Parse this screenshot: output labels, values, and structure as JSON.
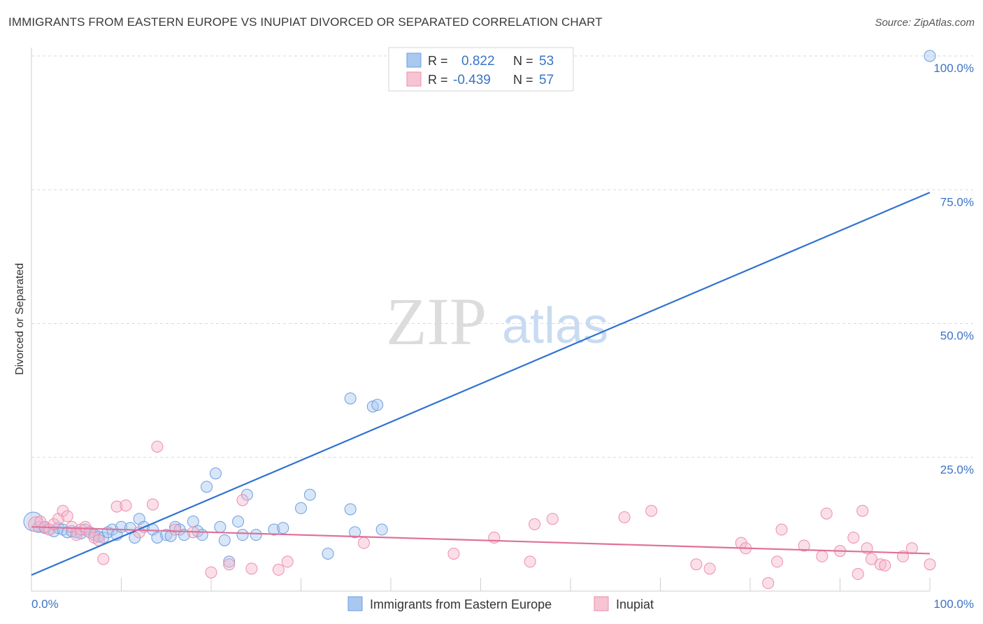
{
  "title": "IMMIGRANTS FROM EASTERN EUROPE VS INUPIAT DIVORCED OR SEPARATED CORRELATION CHART",
  "source": "Source: ZipAtlas.com",
  "watermark": {
    "zip": "ZIP",
    "atlas": "atlas"
  },
  "colors": {
    "blue_fill": "#a9c8f0",
    "blue_stroke": "#6c9fe0",
    "blue_line": "#2f72d0",
    "pink_fill": "#f6b8cb",
    "pink_stroke": "#ec8eab",
    "pink_line": "#e0709a",
    "grid": "#d8d8d8",
    "tick_text": "#3a74c6"
  },
  "legend": {
    "r_label": "R =",
    "n_label": "N =",
    "blue": {
      "r": "0.822",
      "n": "53"
    },
    "pink": {
      "r": "-0.439",
      "n": "57"
    }
  },
  "chart_data": {
    "type": "scatter",
    "title": "IMMIGRANTS FROM EASTERN EUROPE VS INUPIAT DIVORCED OR SEPARATED CORRELATION CHART",
    "xlabel": "",
    "ylabel": "Divorced or Separated",
    "xlim": [
      0,
      100
    ],
    "ylim": [
      0,
      100
    ],
    "x_tick_labels": [
      "0.0%",
      "100.0%"
    ],
    "y_ticks": [
      25,
      50,
      75,
      100
    ],
    "y_tick_labels": [
      "25.0%",
      "50.0%",
      "75.0%",
      "100.0%"
    ],
    "series": [
      {
        "name": "Immigrants from Eastern Europe",
        "color": "blue",
        "trend": {
          "x0": 0,
          "y0": 3.0,
          "x1": 100,
          "y1": 74.5
        },
        "points": [
          [
            0.2,
            13.0,
            3
          ],
          [
            0.8,
            12.0,
            1
          ],
          [
            1.5,
            11.8,
            1
          ],
          [
            2.0,
            11.5,
            1
          ],
          [
            2.5,
            11.2,
            1
          ],
          [
            3.0,
            11.8,
            1
          ],
          [
            3.5,
            11.5,
            1
          ],
          [
            4.0,
            11.0,
            1
          ],
          [
            4.5,
            11.2,
            1
          ],
          [
            5.0,
            11.0,
            1
          ],
          [
            5.5,
            10.8,
            1
          ],
          [
            6.0,
            11.5,
            1
          ],
          [
            6.5,
            11.0,
            1
          ],
          [
            7.0,
            10.5,
            1
          ],
          [
            7.5,
            10.2,
            1
          ],
          [
            8.0,
            10.0,
            1
          ],
          [
            8.5,
            11.0,
            1
          ],
          [
            9.0,
            11.5,
            1
          ],
          [
            9.5,
            10.5,
            1
          ],
          [
            10.0,
            12.0,
            1
          ],
          [
            11.0,
            11.8,
            1
          ],
          [
            11.5,
            10.0,
            1
          ],
          [
            12.0,
            13.5,
            1
          ],
          [
            12.5,
            12.0,
            1
          ],
          [
            13.5,
            11.5,
            1
          ],
          [
            14.0,
            10.0,
            1
          ],
          [
            15.0,
            10.5,
            1
          ],
          [
            15.5,
            10.3,
            1
          ],
          [
            16.0,
            12.0,
            1
          ],
          [
            16.5,
            11.5,
            1
          ],
          [
            17.0,
            10.5,
            1
          ],
          [
            18.0,
            13.0,
            1
          ],
          [
            18.5,
            11.2,
            1
          ],
          [
            19.0,
            10.5,
            1
          ],
          [
            19.5,
            19.5,
            1
          ],
          [
            20.5,
            22.0,
            1
          ],
          [
            21.0,
            12.0,
            1
          ],
          [
            21.5,
            9.5,
            1
          ],
          [
            22.0,
            5.5,
            1
          ],
          [
            23.0,
            13.0,
            1
          ],
          [
            23.5,
            10.5,
            1
          ],
          [
            24.0,
            18.0,
            1
          ],
          [
            25.0,
            10.5,
            1
          ],
          [
            27.0,
            11.5,
            1
          ],
          [
            28.0,
            11.8,
            1
          ],
          [
            30.0,
            15.5,
            1
          ],
          [
            31.0,
            18.0,
            1
          ],
          [
            33.0,
            7.0,
            1
          ],
          [
            35.5,
            36.0,
            1
          ],
          [
            35.5,
            15.3,
            1
          ],
          [
            36.0,
            11.0,
            1
          ],
          [
            38.0,
            34.5,
            1
          ],
          [
            38.5,
            34.8,
            1
          ],
          [
            39.0,
            11.5,
            1
          ],
          [
            100.0,
            100.0,
            1
          ]
        ]
      },
      {
        "name": "Inupiat",
        "color": "pink",
        "trend": {
          "x0": 0,
          "y0": 12.0,
          "x1": 100,
          "y1": 7.0
        },
        "points": [
          [
            0.5,
            12.5,
            2
          ],
          [
            1.0,
            13.0,
            1
          ],
          [
            1.5,
            12.0,
            1
          ],
          [
            2.0,
            11.5,
            1
          ],
          [
            2.5,
            12.5,
            1
          ],
          [
            3.0,
            13.5,
            1
          ],
          [
            3.5,
            15.0,
            1
          ],
          [
            4.0,
            14.0,
            1
          ],
          [
            4.5,
            12.0,
            1
          ],
          [
            5.0,
            10.5,
            1
          ],
          [
            5.5,
            11.5,
            1
          ],
          [
            6.0,
            12.0,
            1
          ],
          [
            6.5,
            11.0,
            1
          ],
          [
            7.0,
            10.0,
            1
          ],
          [
            7.5,
            9.5,
            1
          ],
          [
            8.0,
            6.0,
            1
          ],
          [
            9.5,
            15.8,
            1
          ],
          [
            10.5,
            16.0,
            1
          ],
          [
            12.0,
            11.0,
            1
          ],
          [
            13.5,
            16.2,
            1
          ],
          [
            14.0,
            27.0,
            1
          ],
          [
            16.0,
            11.5,
            1
          ],
          [
            18.0,
            11.0,
            1
          ],
          [
            20.0,
            3.5,
            1
          ],
          [
            22.0,
            5.0,
            1
          ],
          [
            23.5,
            17.0,
            1
          ],
          [
            24.5,
            4.2,
            1
          ],
          [
            27.5,
            4.0,
            1
          ],
          [
            28.5,
            5.5,
            1
          ],
          [
            37.0,
            9.0,
            1
          ],
          [
            47.0,
            7.0,
            1
          ],
          [
            51.5,
            10.0,
            1
          ],
          [
            55.5,
            5.5,
            1
          ],
          [
            56.0,
            12.5,
            1
          ],
          [
            58.0,
            13.5,
            1
          ],
          [
            66.0,
            13.8,
            1
          ],
          [
            69.0,
            15.0,
            1
          ],
          [
            74.0,
            5.0,
            1
          ],
          [
            75.5,
            4.2,
            1
          ],
          [
            79.0,
            9.0,
            1
          ],
          [
            79.5,
            8.0,
            1
          ],
          [
            82.0,
            1.5,
            1
          ],
          [
            83.0,
            5.5,
            1
          ],
          [
            83.5,
            11.5,
            1
          ],
          [
            86.0,
            8.5,
            1
          ],
          [
            88.0,
            6.5,
            1
          ],
          [
            88.5,
            14.5,
            1
          ],
          [
            90.0,
            7.5,
            1
          ],
          [
            91.5,
            10.0,
            1
          ],
          [
            92.0,
            3.2,
            1
          ],
          [
            92.5,
            15.0,
            1
          ],
          [
            93.0,
            8.0,
            1
          ],
          [
            93.5,
            6.0,
            1
          ],
          [
            94.5,
            5.0,
            1
          ],
          [
            95.0,
            4.8,
            1
          ],
          [
            97.0,
            6.5,
            1
          ],
          [
            98.0,
            8.0,
            1
          ],
          [
            100.0,
            5.0,
            1
          ]
        ]
      }
    ]
  }
}
